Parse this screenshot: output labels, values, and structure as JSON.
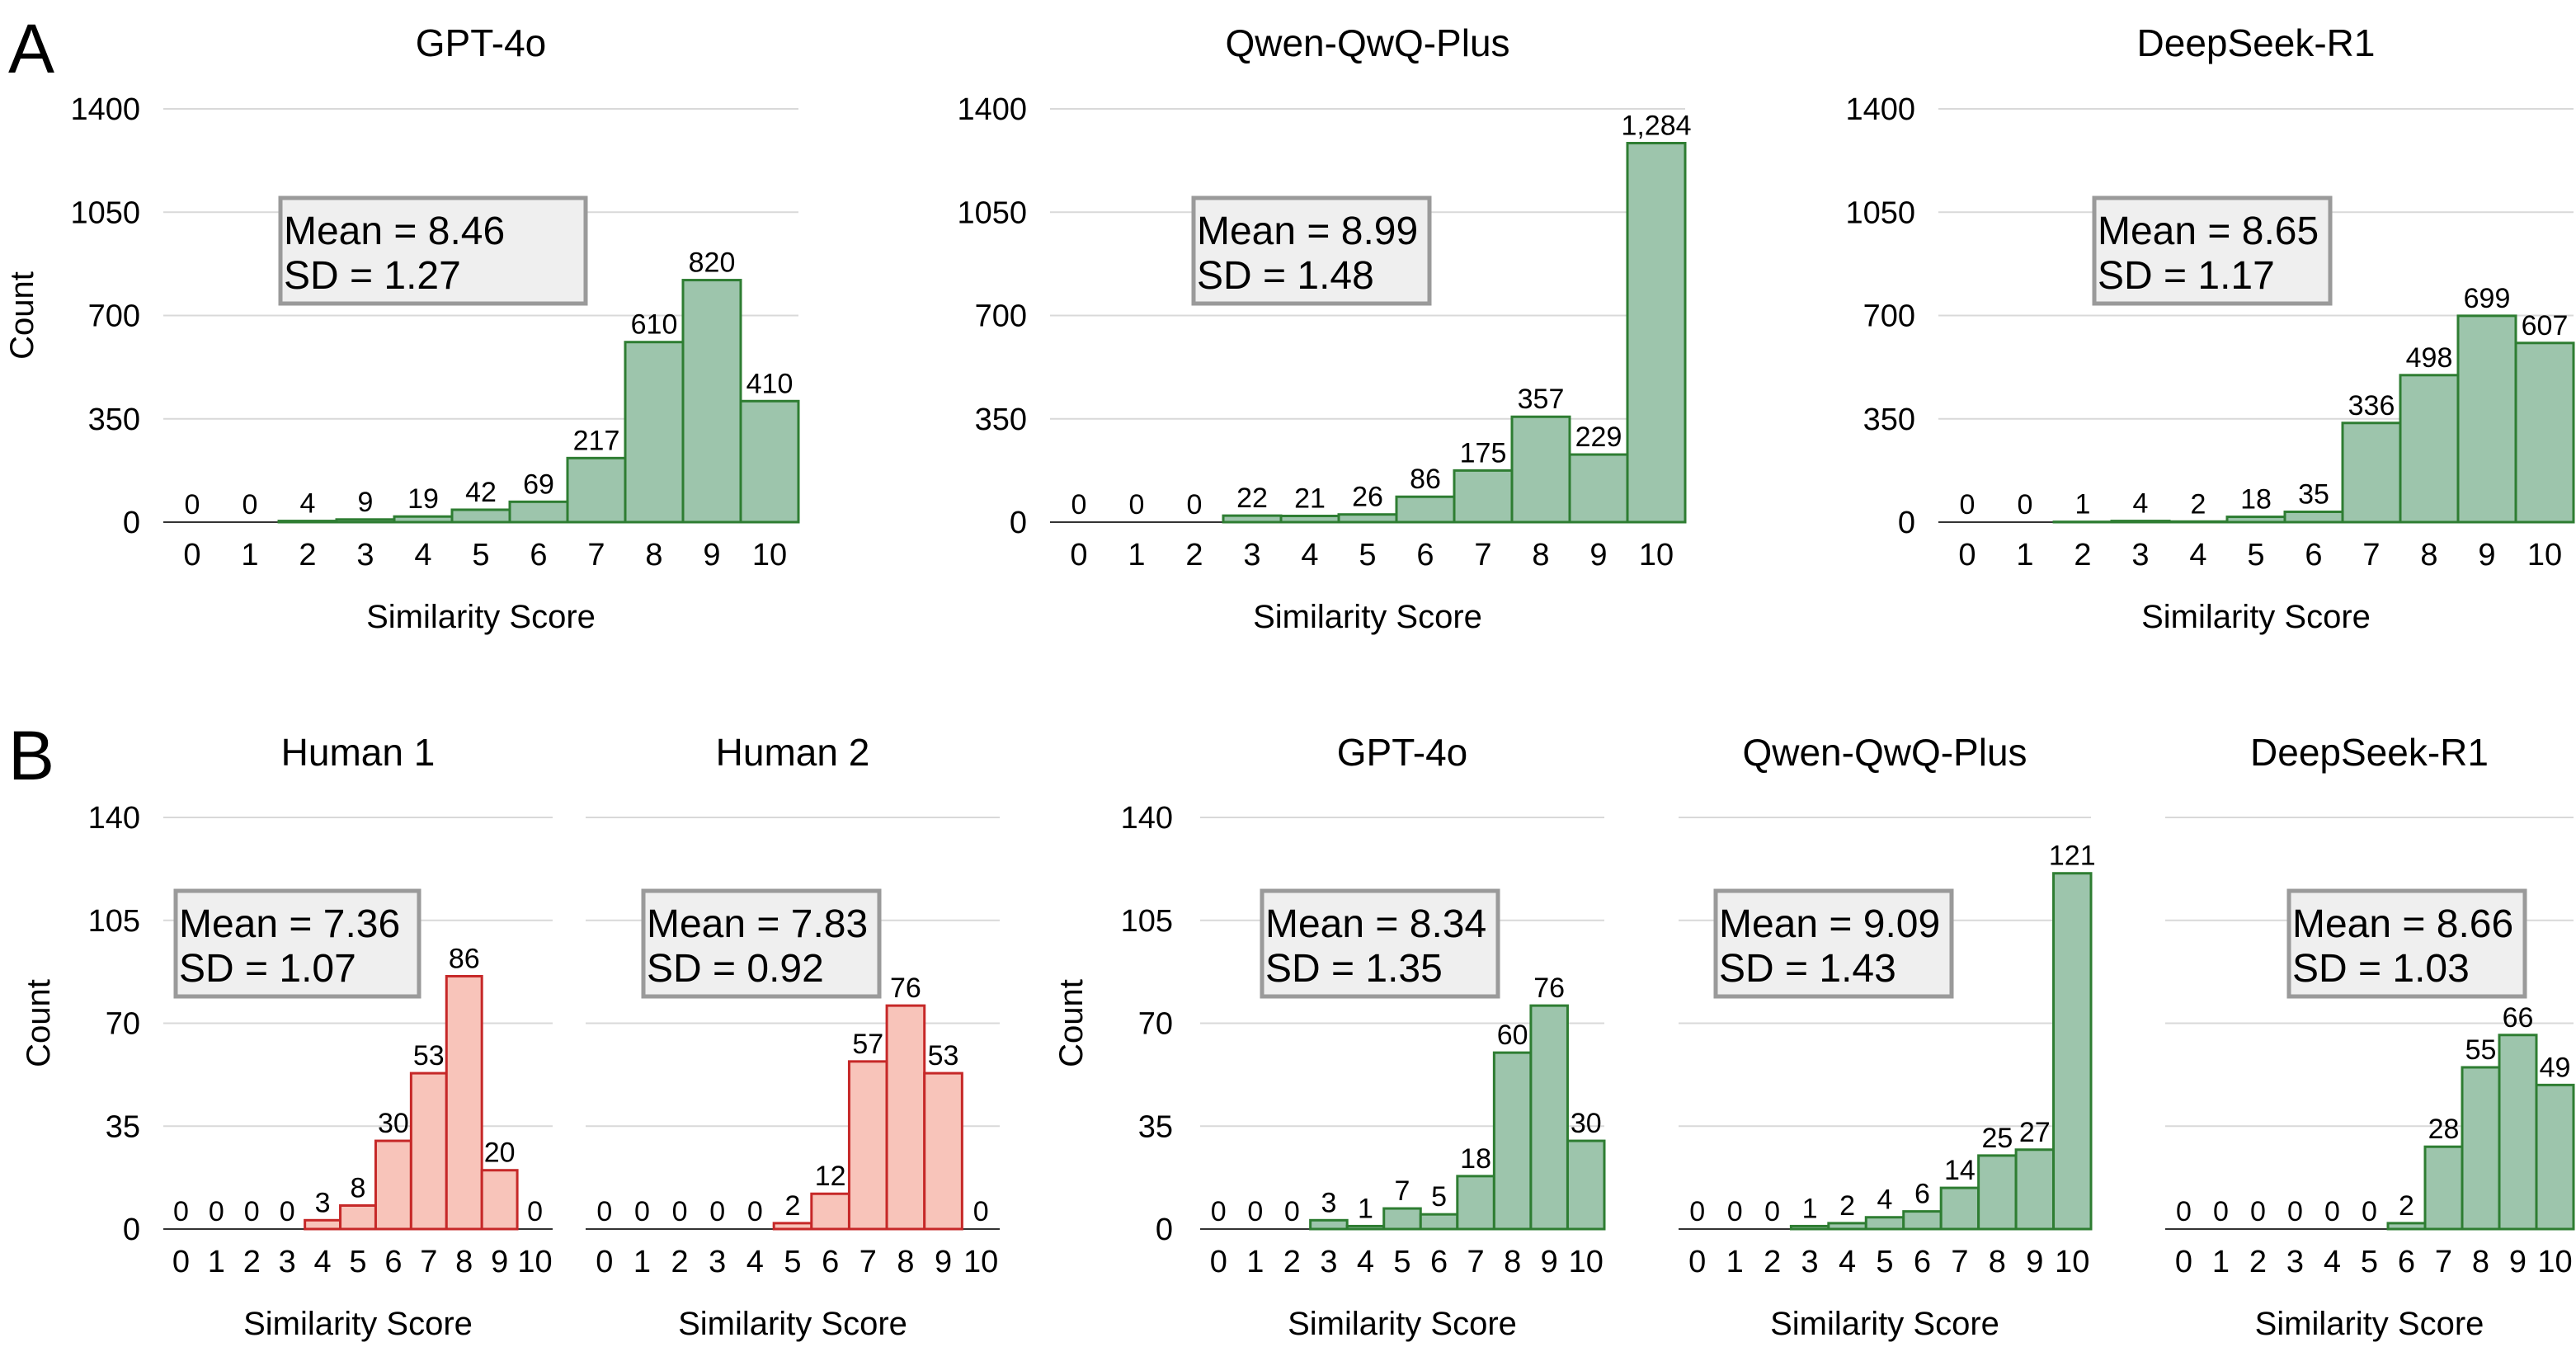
{
  "panels": {
    "a": "A",
    "b": "B"
  },
  "colors": {
    "green_fill": "#9dc5ac",
    "green_stroke": "#2e7d32",
    "red_fill": "#f8c4ba",
    "red_stroke": "#c62828"
  },
  "chart_data": [
    {
      "type": "bar",
      "panel": "A",
      "title": "GPT-4o",
      "color": "green",
      "categories": [
        "0",
        "1",
        "2",
        "3",
        "4",
        "5",
        "6",
        "7",
        "8",
        "9",
        "10"
      ],
      "values": [
        0,
        0,
        4,
        9,
        19,
        42,
        69,
        217,
        610,
        820,
        410
      ],
      "value_labels": [
        "0",
        "0",
        "4",
        "9",
        "19",
        "42",
        "69",
        "217",
        "610",
        "820",
        "410"
      ],
      "yticks": [
        0,
        350,
        700,
        1050,
        1400
      ],
      "ylim": [
        0,
        1400
      ],
      "xlabel": "Similarity Score",
      "ylabel": "Count",
      "stats": {
        "mean": "Mean = 8.46",
        "sd": "SD = 1.27"
      }
    },
    {
      "type": "bar",
      "panel": "A",
      "title": "Qwen-QwQ-Plus",
      "color": "green",
      "categories": [
        "0",
        "1",
        "2",
        "3",
        "4",
        "5",
        "6",
        "7",
        "8",
        "9",
        "10"
      ],
      "values": [
        0,
        0,
        0,
        22,
        21,
        26,
        86,
        175,
        357,
        229,
        1284
      ],
      "value_labels": [
        "0",
        "0",
        "0",
        "22",
        "21",
        "26",
        "86",
        "175",
        "357",
        "229",
        "1,284"
      ],
      "yticks": [
        0,
        350,
        700,
        1050,
        1400
      ],
      "ylim": [
        0,
        1400
      ],
      "xlabel": "Similarity Score",
      "ylabel": "",
      "stats": {
        "mean": "Mean = 8.99",
        "sd": "SD = 1.48"
      }
    },
    {
      "type": "bar",
      "panel": "A",
      "title": "DeepSeek-R1",
      "color": "green",
      "categories": [
        "0",
        "1",
        "2",
        "3",
        "4",
        "5",
        "6",
        "7",
        "8",
        "9",
        "10"
      ],
      "values": [
        0,
        0,
        1,
        4,
        2,
        18,
        35,
        336,
        498,
        699,
        607
      ],
      "value_labels": [
        "0",
        "0",
        "1",
        "4",
        "2",
        "18",
        "35",
        "336",
        "498",
        "699",
        "607"
      ],
      "yticks": [
        0,
        350,
        700,
        1050,
        1400
      ],
      "ylim": [
        0,
        1400
      ],
      "xlabel": "Similarity Score",
      "ylabel": "",
      "stats": {
        "mean": "Mean = 8.65",
        "sd": "SD = 1.17"
      }
    },
    {
      "type": "bar",
      "panel": "B",
      "title": "Human 1",
      "color": "red",
      "categories": [
        "0",
        "1",
        "2",
        "3",
        "4",
        "5",
        "6",
        "7",
        "8",
        "9",
        "10"
      ],
      "values": [
        0,
        0,
        0,
        0,
        3,
        8,
        30,
        53,
        86,
        20,
        0
      ],
      "value_labels": [
        "0",
        "0",
        "0",
        "0",
        "3",
        "8",
        "30",
        "53",
        "86",
        "20",
        "0"
      ],
      "yticks": [
        0,
        35,
        70,
        105,
        140
      ],
      "ylim": [
        0,
        140
      ],
      "xlabel": "Similarity Score",
      "ylabel": "Count",
      "stats": {
        "mean": "Mean = 7.36",
        "sd": "SD = 1.07"
      }
    },
    {
      "type": "bar",
      "panel": "B",
      "title": "Human 2",
      "color": "red",
      "categories": [
        "0",
        "1",
        "2",
        "3",
        "4",
        "5",
        "6",
        "7",
        "8",
        "9",
        "10"
      ],
      "values": [
        0,
        0,
        0,
        0,
        0,
        2,
        12,
        57,
        76,
        53,
        0
      ],
      "value_labels": [
        "0",
        "0",
        "0",
        "0",
        "0",
        "2",
        "12",
        "57",
        "76",
        "53",
        "0"
      ],
      "yticks": [
        0,
        35,
        70,
        105,
        140
      ],
      "ylim": [
        0,
        140
      ],
      "xlabel": "Similarity Score",
      "ylabel": "",
      "stats": {
        "mean": "Mean = 7.83",
        "sd": "SD = 0.92"
      }
    },
    {
      "type": "bar",
      "panel": "B",
      "title": "GPT-4o",
      "color": "green",
      "categories": [
        "0",
        "1",
        "2",
        "3",
        "4",
        "5",
        "6",
        "7",
        "8",
        "9",
        "10"
      ],
      "values": [
        0,
        0,
        0,
        3,
        1,
        7,
        5,
        18,
        60,
        76,
        30
      ],
      "value_labels": [
        "0",
        "0",
        "0",
        "3",
        "1",
        "7",
        "5",
        "18",
        "60",
        "76",
        "30"
      ],
      "yticks": [
        0,
        35,
        70,
        105,
        140
      ],
      "ylim": [
        0,
        140
      ],
      "xlabel": "Similarity Score",
      "ylabel": "Count",
      "stats": {
        "mean": "Mean = 8.34",
        "sd": "SD = 1.35"
      }
    },
    {
      "type": "bar",
      "panel": "B",
      "title": "Qwen-QwQ-Plus",
      "color": "green",
      "categories": [
        "0",
        "1",
        "2",
        "3",
        "4",
        "5",
        "6",
        "7",
        "8",
        "9",
        "10"
      ],
      "values": [
        0,
        0,
        0,
        1,
        2,
        4,
        6,
        14,
        25,
        27,
        121
      ],
      "value_labels": [
        "0",
        "0",
        "0",
        "1",
        "2",
        "4",
        "6",
        "14",
        "25",
        "27",
        "121"
      ],
      "yticks": [
        0,
        35,
        70,
        105,
        140
      ],
      "ylim": [
        0,
        140
      ],
      "xlabel": "Similarity Score",
      "ylabel": "",
      "stats": {
        "mean": "Mean = 9.09",
        "sd": "SD = 1.43"
      }
    },
    {
      "type": "bar",
      "panel": "B",
      "title": "DeepSeek-R1",
      "color": "green",
      "categories": [
        "0",
        "1",
        "2",
        "3",
        "4",
        "5",
        "6",
        "7",
        "8",
        "9",
        "10"
      ],
      "values": [
        0,
        0,
        0,
        0,
        0,
        0,
        2,
        28,
        55,
        66,
        49
      ],
      "value_labels": [
        "0",
        "0",
        "0",
        "0",
        "0",
        "0",
        "2",
        "28",
        "55",
        "66",
        "49"
      ],
      "yticks": [
        0,
        35,
        70,
        105,
        140
      ],
      "ylim": [
        0,
        140
      ],
      "xlabel": "Similarity Score",
      "ylabel": "",
      "stats": {
        "mean": "Mean = 8.66",
        "sd": "SD = 1.03"
      }
    }
  ]
}
